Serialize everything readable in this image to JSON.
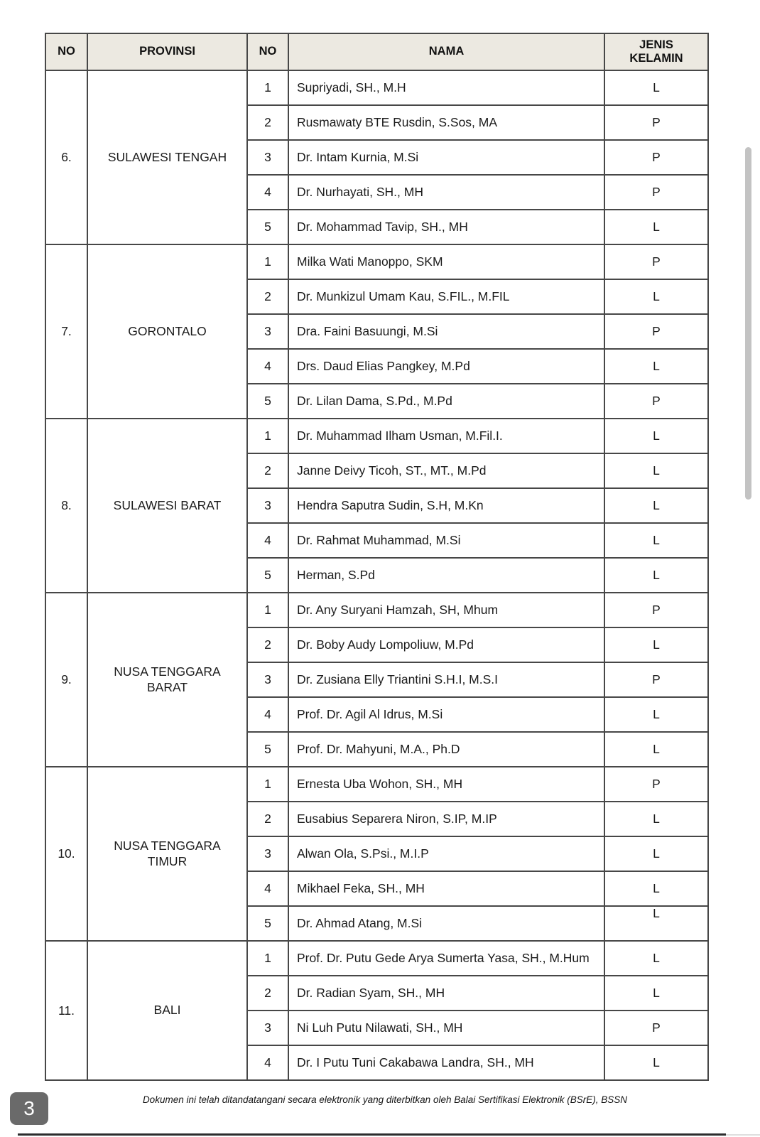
{
  "page": {
    "page_number": "3",
    "footer_note": "Dokumen ini telah ditandatangani secara elektronik yang diterbitkan oleh Balai Sertifikasi Elektronik (BSrE), BSSN"
  },
  "colors": {
    "header_background": "#ece9e1",
    "table_border": "#474747",
    "page_badge": "#6a6a6a",
    "scrollbar_thumb": "#c3c3c3",
    "bottom_edge_line": "#2c2c2e"
  },
  "table": {
    "headers": [
      "NO",
      "PROVINSI",
      "NO",
      "NAMA",
      "JENIS\nKELAMIN"
    ],
    "groups": [
      {
        "no": "6.",
        "provinsi": "SULAWESI TENGAH",
        "members": [
          {
            "no": "1",
            "nama": "Supriyadi, SH., M.H",
            "jk": "L"
          },
          {
            "no": "2",
            "nama": "Rusmawaty BTE Rusdin, S.Sos, MA",
            "jk": "P"
          },
          {
            "no": "3",
            "nama": "Dr. Intam Kurnia, M.Si",
            "jk": "P"
          },
          {
            "no": "4",
            "nama": "Dr. Nurhayati, SH., MH",
            "jk": "P"
          },
          {
            "no": "5",
            "nama": "Dr. Mohammad Tavip, SH., MH",
            "jk": "L"
          }
        ]
      },
      {
        "no": "7.",
        "provinsi": "GORONTALO",
        "members": [
          {
            "no": "1",
            "nama": "Milka Wati Manoppo, SKM",
            "jk": "P"
          },
          {
            "no": "2",
            "nama": "Dr. Munkizul Umam Kau, S.FIL., M.FIL",
            "jk": "L"
          },
          {
            "no": "3",
            "nama": "Dra. Faini Basuungi, M.Si",
            "jk": "P"
          },
          {
            "no": "4",
            "nama": "Drs. Daud Elias Pangkey, M.Pd",
            "jk": "L"
          },
          {
            "no": "5",
            "nama": "Dr. Lilan Dama, S.Pd., M.Pd",
            "jk": "P"
          }
        ]
      },
      {
        "no": "8.",
        "provinsi": "SULAWESI BARAT",
        "members": [
          {
            "no": "1",
            "nama": "Dr. Muhammad Ilham Usman, M.Fil.I.",
            "jk": "L"
          },
          {
            "no": "2",
            "nama": "Janne Deivy Ticoh, ST., MT., M.Pd",
            "jk": "L"
          },
          {
            "no": "3",
            "nama": "Hendra Saputra Sudin, S.H, M.Kn",
            "jk": "L"
          },
          {
            "no": "4",
            "nama": "Dr. Rahmat Muhammad, M.Si",
            "jk": "L"
          },
          {
            "no": "5",
            "nama": "Herman, S.Pd",
            "jk": "L"
          }
        ]
      },
      {
        "no": "9.",
        "provinsi": "NUSA TENGGARA\nBARAT",
        "members": [
          {
            "no": "1",
            "nama": "Dr. Any Suryani Hamzah, SH, Mhum",
            "jk": "P"
          },
          {
            "no": "2",
            "nama": "Dr. Boby Audy Lompoliuw, M.Pd",
            "jk": "L"
          },
          {
            "no": "3",
            "nama": "Dr. Zusiana Elly Triantini S.H.I, M.S.I",
            "jk": "P"
          },
          {
            "no": "4",
            "nama": "Prof. Dr. Agil Al Idrus, M.Si",
            "jk": "L"
          },
          {
            "no": "5",
            "nama": "Prof. Dr. Mahyuni, M.A., Ph.D",
            "jk": "L"
          }
        ]
      },
      {
        "no": "10.",
        "provinsi": "NUSA TENGGARA\nTIMUR",
        "members": [
          {
            "no": "1",
            "nama": "Ernesta Uba Wohon, SH., MH",
            "jk": "P"
          },
          {
            "no": "2",
            "nama": "Eusabius Separera Niron, S.IP, M.IP",
            "jk": "L"
          },
          {
            "no": "3",
            "nama": "Alwan Ola, S.Psi., M.I.P",
            "jk": "L"
          },
          {
            "no": "4",
            "nama": "Mikhael Feka, SH., MH",
            "jk": "L"
          },
          {
            "no": "5",
            "nama": "Dr. Ahmad Atang, M.Si",
            "jk": "L",
            "jk_align": "top"
          }
        ]
      },
      {
        "no": "11.",
        "provinsi": "BALI",
        "members": [
          {
            "no": "1",
            "nama": "Prof. Dr. Putu Gede Arya Sumerta Yasa, SH., M.Hum",
            "jk": "L"
          },
          {
            "no": "2",
            "nama": "Dr. Radian Syam, SH., MH",
            "jk": "L"
          },
          {
            "no": "3",
            "nama": "Ni Luh Putu Nilawati, SH., MH",
            "jk": "P"
          },
          {
            "no": "4",
            "nama": "Dr. I Putu Tuni Cakabawa Landra, SH., MH",
            "jk": "L"
          }
        ]
      }
    ]
  }
}
